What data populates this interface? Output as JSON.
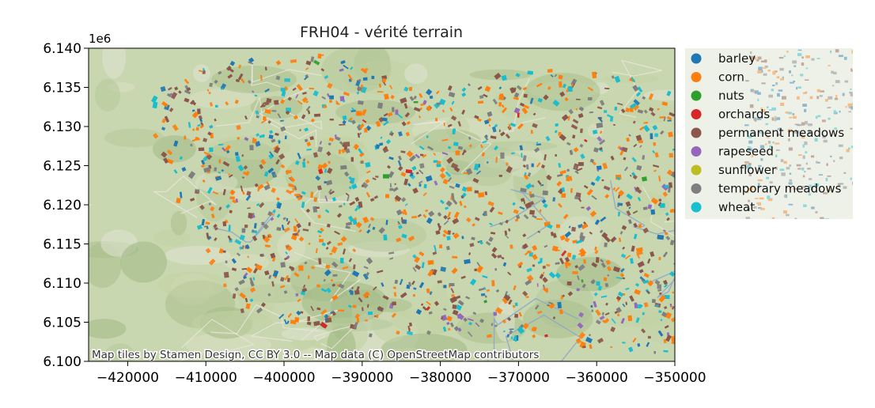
{
  "title": "FRH04 - vérité terrain",
  "attribution": "Map tiles by Stamen Design, CC BY 3.0 -- Map data (C) OpenStreetMap contributors",
  "chart_data": {
    "type": "scatter",
    "title": "FRH04 - vérité terrain",
    "xlabel": "",
    "ylabel": "",
    "xlim": [
      -425000,
      -350000
    ],
    "ylim": [
      6100000,
      6140000
    ],
    "y_offset_label": "1e6",
    "x_ticks": [
      -420000,
      -410000,
      -400000,
      -390000,
      -380000,
      -370000,
      -360000,
      -350000
    ],
    "x_tick_labels": [
      "−420000",
      "−410000",
      "−400000",
      "−390000",
      "−380000",
      "−370000",
      "−360000",
      "−350000"
    ],
    "y_ticks": [
      6.1,
      6.105,
      6.11,
      6.115,
      6.12,
      6.125,
      6.13,
      6.135,
      6.14
    ],
    "y_tick_labels": [
      "6.100",
      "6.105",
      "6.110",
      "6.115",
      "6.120",
      "6.125",
      "6.130",
      "6.135",
      "6.140"
    ],
    "legend_position": "outside-right",
    "series": [
      {
        "name": "barley",
        "color": "#1f77b4"
      },
      {
        "name": "corn",
        "color": "#ff7f0e"
      },
      {
        "name": "nuts",
        "color": "#2ca02c"
      },
      {
        "name": "orchards",
        "color": "#d62728"
      },
      {
        "name": "permanent meadows",
        "color": "#8c564b"
      },
      {
        "name": "rapeseed",
        "color": "#9467bd"
      },
      {
        "name": "sunflower",
        "color": "#bcbd22"
      },
      {
        "name": "temporary meadows",
        "color": "#7f7f7f"
      },
      {
        "name": "wheat",
        "color": "#17becf"
      }
    ]
  }
}
